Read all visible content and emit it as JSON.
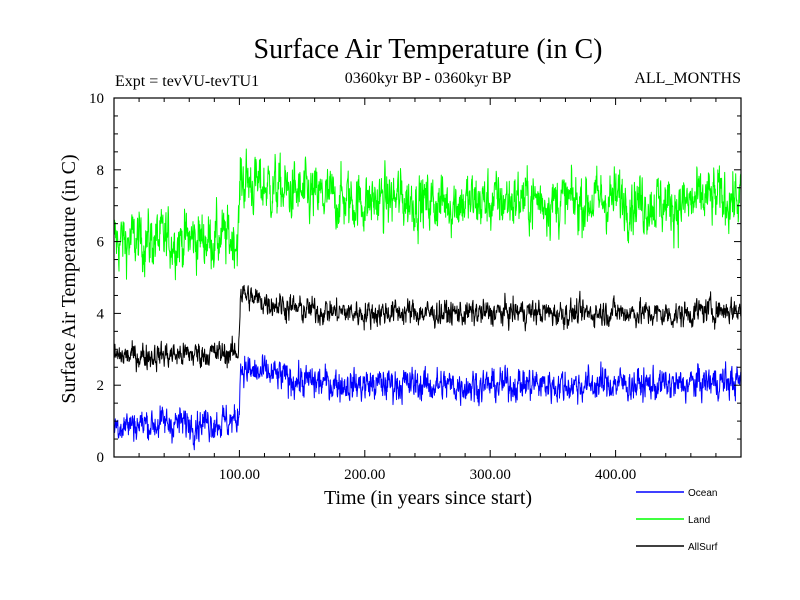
{
  "chart_data": {
    "type": "line",
    "title": "Surface Air Temperature (in C)",
    "subtitle_left": "Expt = tevVU-tevTU1",
    "subtitle_center": "0360kyr BP - 0360kyr BP",
    "subtitle_right": "ALL_MONTHS",
    "xlabel": "Time (in years since start)",
    "ylabel": "Surface Air Temperature (in C)",
    "xlim": [
      0,
      500
    ],
    "ylim": [
      0,
      10
    ],
    "x_ticks": [
      {
        "value": 100,
        "label": "100.00"
      },
      {
        "value": 200,
        "label": "200.00"
      },
      {
        "value": 300,
        "label": "300.00"
      },
      {
        "value": 400,
        "label": "400.00"
      }
    ],
    "y_ticks": [
      {
        "value": 0,
        "label": "0"
      },
      {
        "value": 2,
        "label": "2"
      },
      {
        "value": 4,
        "label": "4"
      },
      {
        "value": 6,
        "label": "6"
      },
      {
        "value": 8,
        "label": "8"
      },
      {
        "value": 10,
        "label": "10"
      }
    ],
    "legend_position": "bottom-right",
    "series": [
      {
        "name": "Ocean",
        "color": "#0000ff",
        "x": [
          0,
          99,
          101,
          110,
          125,
          150,
          175,
          200,
          225,
          250,
          275,
          300,
          325,
          350,
          375,
          400,
          425,
          450,
          475,
          500
        ],
        "values": [
          0.9,
          1.0,
          2.5,
          2.35,
          2.3,
          2.1,
          2.05,
          2.0,
          2.05,
          2.0,
          2.0,
          2.0,
          2.05,
          2.0,
          2.0,
          2.05,
          2.0,
          2.0,
          2.1,
          2.1
        ],
        "noise_amplitude": 0.7
      },
      {
        "name": "Land",
        "color": "#00ff00",
        "x": [
          0,
          99,
          101,
          110,
          125,
          150,
          175,
          200,
          225,
          250,
          275,
          300,
          325,
          350,
          375,
          400,
          425,
          450,
          475,
          500
        ],
        "values": [
          6.0,
          6.1,
          7.8,
          7.6,
          7.5,
          7.3,
          7.2,
          7.1,
          7.2,
          7.1,
          7.1,
          7.1,
          7.2,
          7.1,
          7.1,
          7.2,
          7.1,
          7.0,
          7.2,
          7.2
        ],
        "noise_amplitude": 1.25
      },
      {
        "name": "AllSurf",
        "color": "#000000",
        "x": [
          0,
          99,
          101,
          110,
          125,
          150,
          175,
          200,
          225,
          250,
          275,
          300,
          325,
          350,
          375,
          400,
          425,
          450,
          475,
          500
        ],
        "values": [
          2.8,
          2.9,
          4.6,
          4.4,
          4.3,
          4.1,
          4.05,
          4.0,
          4.05,
          4.0,
          4.0,
          4.0,
          4.05,
          4.0,
          4.0,
          4.05,
          4.0,
          3.95,
          4.1,
          4.1
        ],
        "noise_amplitude": 0.55
      }
    ]
  }
}
